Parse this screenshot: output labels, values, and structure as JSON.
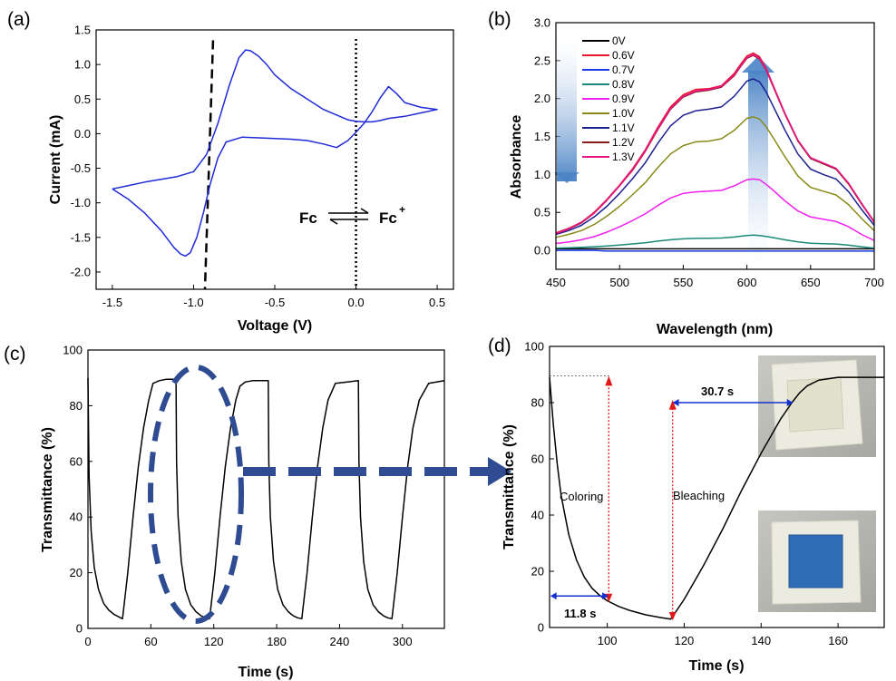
{
  "panels": {
    "a": {
      "label": "(a)",
      "xlabel": "Voltage (V)",
      "ylabel": "Current (mA)",
      "xlim": [
        -1.6,
        0.6
      ],
      "ylim": [
        -2.25,
        1.5
      ],
      "xticks": [
        -1.5,
        -1.0,
        -0.5,
        0.0,
        0.5
      ],
      "xtick_labels": [
        "-1.5",
        "-1.0",
        "-0.5",
        "0.0",
        "0.5"
      ],
      "yticks": [
        1.5,
        1.0,
        0.5,
        0.0,
        -0.5,
        -1.0,
        -1.5,
        -2.0
      ],
      "ytick_labels": [
        "1.5",
        "1.0",
        "0.5",
        "0.0",
        "-0.5",
        "-1.0",
        "-1.5",
        "-2.0"
      ],
      "annotation": {
        "left": "Fc",
        "right": "Fc",
        "sup": "+"
      },
      "dashed_line": [
        [
          -0.88,
          1.35
        ],
        [
          -0.93,
          -2.25
        ]
      ],
      "dotted_line_x": 0.0
    },
    "b": {
      "label": "(b)",
      "xlabel": "Wavelength (nm)",
      "ylabel": "Absorbance",
      "xlim": [
        450,
        700
      ],
      "ylim": [
        -0.25,
        3.0
      ],
      "xticks": [
        450,
        500,
        550,
        600,
        650,
        700
      ],
      "xtick_labels": [
        "450",
        "500",
        "550",
        "600",
        "650",
        "700"
      ],
      "yticks": [
        0.0,
        0.5,
        1.0,
        1.5,
        2.0,
        2.5,
        3.0
      ],
      "ytick_labels": [
        "0.0",
        "0.5",
        "1.0",
        "1.5",
        "2.0",
        "2.5",
        "3.0"
      ]
    },
    "c": {
      "label": "(c)",
      "xlabel": "Time (s)",
      "ylabel": "Transmittance (%)",
      "xlim": [
        0,
        340
      ],
      "ylim": [
        0,
        100
      ],
      "xticks": [
        0,
        60,
        120,
        180,
        240,
        300
      ],
      "xtick_labels": [
        "0",
        "60",
        "120",
        "180",
        "240",
        "300"
      ],
      "yticks": [
        0,
        20,
        40,
        60,
        80,
        100
      ],
      "ytick_labels": [
        "0",
        "20",
        "40",
        "60",
        "80",
        "100"
      ]
    },
    "d": {
      "label": "(d)",
      "xlabel": "Time (s)",
      "ylabel": "Transmittance (%)",
      "xlim": [
        85,
        172
      ],
      "ylim": [
        0,
        100
      ],
      "xticks": [
        100,
        120,
        140,
        160
      ],
      "xtick_labels": [
        "100",
        "120",
        "140",
        "160"
      ],
      "yticks": [
        0,
        20,
        40,
        60,
        80,
        100
      ],
      "ytick_labels": [
        "0",
        "20",
        "40",
        "60",
        "80",
        "100"
      ],
      "annotations": {
        "coloring": "Coloring",
        "bleaching": "Bleaching",
        "time_coloring": "11.8 s",
        "time_bleaching": "30.7 s"
      },
      "colors": {
        "red_marker": "#e01818",
        "blue_marker": "#1530d0"
      }
    }
  },
  "chart_data": [
    {
      "type": "line",
      "panel": "a",
      "series": [
        {
          "color": "#1f2bd6",
          "x": [
            -1.5,
            -1.4,
            -1.3,
            -1.2,
            -1.12,
            -1.08,
            -1.05,
            -1.02,
            -0.98,
            -0.94,
            -0.9,
            -0.85,
            -0.8,
            -0.7,
            -0.6,
            -0.5,
            -0.4,
            -0.3,
            -0.2,
            -0.12,
            -0.05,
            0.0,
            0.05,
            0.1,
            0.15,
            0.2,
            0.25,
            0.3,
            0.4,
            0.5,
            0.4,
            0.3,
            0.2,
            0.15,
            0.1,
            0.05,
            0.0,
            -0.05,
            -0.1,
            -0.2,
            -0.3,
            -0.4,
            -0.5,
            -0.55,
            -0.6,
            -0.65,
            -0.68,
            -0.72,
            -0.78,
            -0.85,
            -0.92,
            -1.0,
            -1.1,
            -1.2,
            -1.3,
            -1.4,
            -1.5
          ],
          "y": [
            -0.8,
            -0.95,
            -1.15,
            -1.4,
            -1.65,
            -1.74,
            -1.77,
            -1.72,
            -1.5,
            -1.15,
            -0.75,
            -0.35,
            -0.12,
            -0.05,
            -0.06,
            -0.07,
            -0.08,
            -0.1,
            -0.15,
            -0.2,
            -0.1,
            0.02,
            0.15,
            0.32,
            0.52,
            0.68,
            0.58,
            0.45,
            0.38,
            0.35,
            0.3,
            0.25,
            0.22,
            0.19,
            0.17,
            0.17,
            0.18,
            0.2,
            0.25,
            0.35,
            0.5,
            0.65,
            0.85,
            1.0,
            1.12,
            1.2,
            1.21,
            1.1,
            0.7,
            0.15,
            -0.3,
            -0.55,
            -0.62,
            -0.66,
            -0.7,
            -0.75,
            -0.8
          ]
        }
      ]
    },
    {
      "type": "line",
      "panel": "b",
      "x": [
        450,
        460,
        470,
        480,
        490,
        500,
        510,
        520,
        530,
        540,
        550,
        560,
        570,
        580,
        590,
        595,
        600,
        605,
        610,
        615,
        620,
        630,
        640,
        650,
        660,
        670,
        680,
        690,
        700
      ],
      "series": [
        {
          "name": "0V",
          "color": "#000000",
          "values": [
            0.02,
            0.02,
            0.02,
            0.02,
            0.02,
            0.02,
            0.02,
            0.02,
            0.02,
            0.02,
            0.02,
            0.02,
            0.02,
            0.02,
            0.02,
            0.02,
            0.02,
            0.02,
            0.02,
            0.02,
            0.02,
            0.02,
            0.02,
            0.02,
            0.02,
            0.02,
            0.02,
            0.02,
            0.02
          ]
        },
        {
          "name": "0.6V",
          "color": "#e8142a",
          "values": [
            0.23,
            0.29,
            0.37,
            0.5,
            0.67,
            0.86,
            1.07,
            1.32,
            1.62,
            1.89,
            2.05,
            2.12,
            2.13,
            2.17,
            2.33,
            2.45,
            2.56,
            2.6,
            2.55,
            2.4,
            2.2,
            1.8,
            1.45,
            1.22,
            1.15,
            1.08,
            0.88,
            0.62,
            0.38
          ]
        },
        {
          "name": "0.7V",
          "color": "#1b3ce8",
          "values": [
            0.0,
            0.0,
            0.0,
            0.0,
            -0.01,
            -0.01,
            -0.01,
            -0.01,
            -0.01,
            -0.01,
            -0.01,
            -0.01,
            -0.01,
            -0.01,
            -0.01,
            -0.01,
            -0.01,
            -0.01,
            -0.01,
            -0.01,
            -0.01,
            -0.01,
            -0.01,
            -0.01,
            -0.01,
            -0.01,
            -0.01,
            -0.01,
            -0.01
          ]
        },
        {
          "name": "0.8V",
          "color": "#1a8a7a",
          "values": [
            0.03,
            0.034,
            0.04,
            0.048,
            0.058,
            0.07,
            0.084,
            0.1,
            0.122,
            0.14,
            0.152,
            0.158,
            0.16,
            0.162,
            0.175,
            0.186,
            0.196,
            0.2,
            0.196,
            0.184,
            0.169,
            0.138,
            0.111,
            0.094,
            0.088,
            0.083,
            0.068,
            0.048,
            0.03
          ]
        },
        {
          "name": "0.9V",
          "color": "#f020f0",
          "values": [
            0.09,
            0.11,
            0.14,
            0.18,
            0.24,
            0.31,
            0.39,
            0.48,
            0.59,
            0.69,
            0.75,
            0.77,
            0.78,
            0.79,
            0.85,
            0.89,
            0.93,
            0.94,
            0.93,
            0.87,
            0.8,
            0.65,
            0.52,
            0.44,
            0.41,
            0.38,
            0.31,
            0.21,
            0.13
          ]
        },
        {
          "name": "1.0V",
          "color": "#8a8a18",
          "values": [
            0.17,
            0.21,
            0.26,
            0.34,
            0.45,
            0.58,
            0.73,
            0.89,
            1.09,
            1.27,
            1.38,
            1.43,
            1.44,
            1.47,
            1.58,
            1.66,
            1.74,
            1.76,
            1.73,
            1.63,
            1.5,
            1.23,
            0.98,
            0.83,
            0.78,
            0.73,
            0.6,
            0.42,
            0.26
          ]
        },
        {
          "name": "1.1V",
          "color": "#1c2090",
          "values": [
            0.21,
            0.26,
            0.33,
            0.44,
            0.58,
            0.75,
            0.94,
            1.15,
            1.41,
            1.64,
            1.78,
            1.84,
            1.86,
            1.89,
            2.03,
            2.13,
            2.23,
            2.26,
            2.22,
            2.09,
            1.92,
            1.58,
            1.27,
            1.07,
            1.0,
            0.94,
            0.77,
            0.54,
            0.33
          ]
        },
        {
          "name": "1.2V",
          "color": "#8a1c1c",
          "values": [
            0.22,
            0.28,
            0.36,
            0.49,
            0.66,
            0.85,
            1.05,
            1.3,
            1.59,
            1.86,
            2.02,
            2.09,
            2.11,
            2.15,
            2.3,
            2.42,
            2.53,
            2.57,
            2.52,
            2.38,
            2.18,
            1.79,
            1.44,
            1.21,
            1.14,
            1.07,
            0.87,
            0.61,
            0.37
          ]
        },
        {
          "name": "1.3V",
          "color": "#e8148a",
          "values": [
            0.22,
            0.28,
            0.37,
            0.49,
            0.66,
            0.85,
            1.06,
            1.31,
            1.6,
            1.87,
            2.03,
            2.1,
            2.12,
            2.16,
            2.31,
            2.43,
            2.54,
            2.58,
            2.53,
            2.39,
            2.19,
            1.8,
            1.45,
            1.22,
            1.15,
            1.08,
            0.88,
            0.62,
            0.37
          ]
        }
      ]
    },
    {
      "type": "line",
      "panel": "c",
      "series": [
        {
          "color": "#000000",
          "x": [
            0,
            1,
            3,
            6,
            10,
            15,
            20,
            25,
            30,
            33,
            38,
            43,
            48,
            53,
            58,
            62,
            68,
            75,
            84,
            84.5,
            86,
            89,
            93,
            98,
            103,
            108,
            113,
            116,
            121,
            126,
            131,
            136,
            141,
            145,
            150,
            157,
            172,
            172.5,
            174,
            177,
            181,
            186,
            191,
            196,
            200,
            204,
            209,
            214,
            219,
            224,
            229,
            236,
            258,
            258.5,
            260,
            263,
            267,
            272,
            277,
            282,
            286,
            290,
            295,
            300,
            305,
            310,
            316,
            325,
            340
          ],
          "y": [
            90,
            55,
            35,
            22,
            14,
            9,
            6.5,
            5,
            4,
            3.5,
            20,
            40,
            58,
            72,
            82,
            88,
            89,
            89.5,
            89.5,
            60,
            40,
            24,
            14,
            8.5,
            6,
            4.5,
            3.8,
            3.5,
            20,
            40,
            58,
            72,
            82,
            87,
            88.5,
            89,
            89,
            60,
            40,
            24,
            14,
            8.5,
            6,
            4.5,
            3.8,
            3.5,
            20,
            40,
            58,
            72,
            82,
            88,
            89,
            60,
            40,
            24,
            14,
            8.5,
            6,
            4.5,
            3.8,
            3.5,
            20,
            40,
            58,
            72,
            82,
            88,
            89
          ]
        }
      ]
    },
    {
      "type": "line",
      "panel": "d",
      "series": [
        {
          "color": "#000000",
          "x": [
            85,
            86,
            87,
            88,
            90,
            92,
            94,
            96,
            98,
            100,
            103,
            106,
            110,
            114,
            116.5,
            118,
            120,
            125,
            130,
            135,
            140,
            145,
            148,
            150,
            152,
            155,
            160,
            172
          ],
          "y": [
            89,
            72,
            58,
            47,
            33,
            24,
            18,
            14,
            11.5,
            9.5,
            7.5,
            6,
            4.5,
            3.5,
            3,
            6,
            10,
            22,
            35,
            49,
            62,
            74,
            80,
            83.5,
            86,
            88,
            89,
            89
          ]
        }
      ]
    }
  ]
}
